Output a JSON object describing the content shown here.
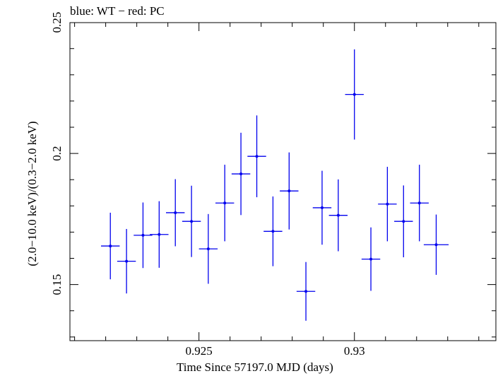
{
  "chart_data": {
    "type": "scatter",
    "title": "blue: WT − red: PC",
    "xlabel": "Time Since 57197.0 MJD (days)",
    "ylabel": "(2.0−10.0 keV)/(0.3−2.0 keV)",
    "xlim": [
      0.92085,
      0.93455
    ],
    "ylim": [
      0.1286,
      0.2499
    ],
    "x_ticks": [
      0.925,
      0.93
    ],
    "x_tick_labels": [
      "0.925",
      "0.93"
    ],
    "y_ticks": [
      0.15,
      0.2,
      0.25
    ],
    "y_tick_labels": [
      "0.15",
      "0.2",
      "0.25"
    ],
    "grid": false,
    "series": [
      {
        "color": "#0000ee",
        "points": [
          {
            "x": 0.92215,
            "xerr": 0.0003,
            "y": 0.1647,
            "yerr": 0.0127
          },
          {
            "x": 0.92267,
            "xerr": 0.0003,
            "y": 0.1589,
            "yerr": 0.0123
          },
          {
            "x": 0.9232,
            "xerr": 0.0003,
            "y": 0.1688,
            "yerr": 0.0125
          },
          {
            "x": 0.92372,
            "xerr": 0.0003,
            "y": 0.1691,
            "yerr": 0.0127
          },
          {
            "x": 0.92424,
            "xerr": 0.0003,
            "y": 0.1774,
            "yerr": 0.0128
          },
          {
            "x": 0.92476,
            "xerr": 0.0003,
            "y": 0.1741,
            "yerr": 0.0136
          },
          {
            "x": 0.9253,
            "xerr": 0.0003,
            "y": 0.1636,
            "yerr": 0.0133
          },
          {
            "x": 0.92583,
            "xerr": 0.0003,
            "y": 0.1811,
            "yerr": 0.0146
          },
          {
            "x": 0.92635,
            "xerr": 0.0003,
            "y": 0.1922,
            "yerr": 0.0157
          },
          {
            "x": 0.92686,
            "xerr": 0.0003,
            "y": 0.1989,
            "yerr": 0.0156
          },
          {
            "x": 0.92738,
            "xerr": 0.0003,
            "y": 0.1703,
            "yerr": 0.0133
          },
          {
            "x": 0.9279,
            "xerr": 0.0003,
            "y": 0.1857,
            "yerr": 0.0147
          },
          {
            "x": 0.92844,
            "xerr": 0.0003,
            "y": 0.1474,
            "yerr": 0.0112
          },
          {
            "x": 0.92896,
            "xerr": 0.0003,
            "y": 0.1793,
            "yerr": 0.0141
          },
          {
            "x": 0.92948,
            "xerr": 0.0003,
            "y": 0.1764,
            "yerr": 0.0137
          },
          {
            "x": 0.93,
            "xerr": 0.0003,
            "y": 0.2225,
            "yerr": 0.0172
          },
          {
            "x": 0.93053,
            "xerr": 0.0003,
            "y": 0.1597,
            "yerr": 0.0121
          },
          {
            "x": 0.93106,
            "xerr": 0.0003,
            "y": 0.1807,
            "yerr": 0.0142
          },
          {
            "x": 0.93158,
            "xerr": 0.0003,
            "y": 0.1741,
            "yerr": 0.0137
          },
          {
            "x": 0.93209,
            "xerr": 0.0003,
            "y": 0.1811,
            "yerr": 0.0146
          },
          {
            "x": 0.93263,
            "xerr": 0.0004,
            "y": 0.1652,
            "yerr": 0.0115
          }
        ]
      }
    ]
  }
}
